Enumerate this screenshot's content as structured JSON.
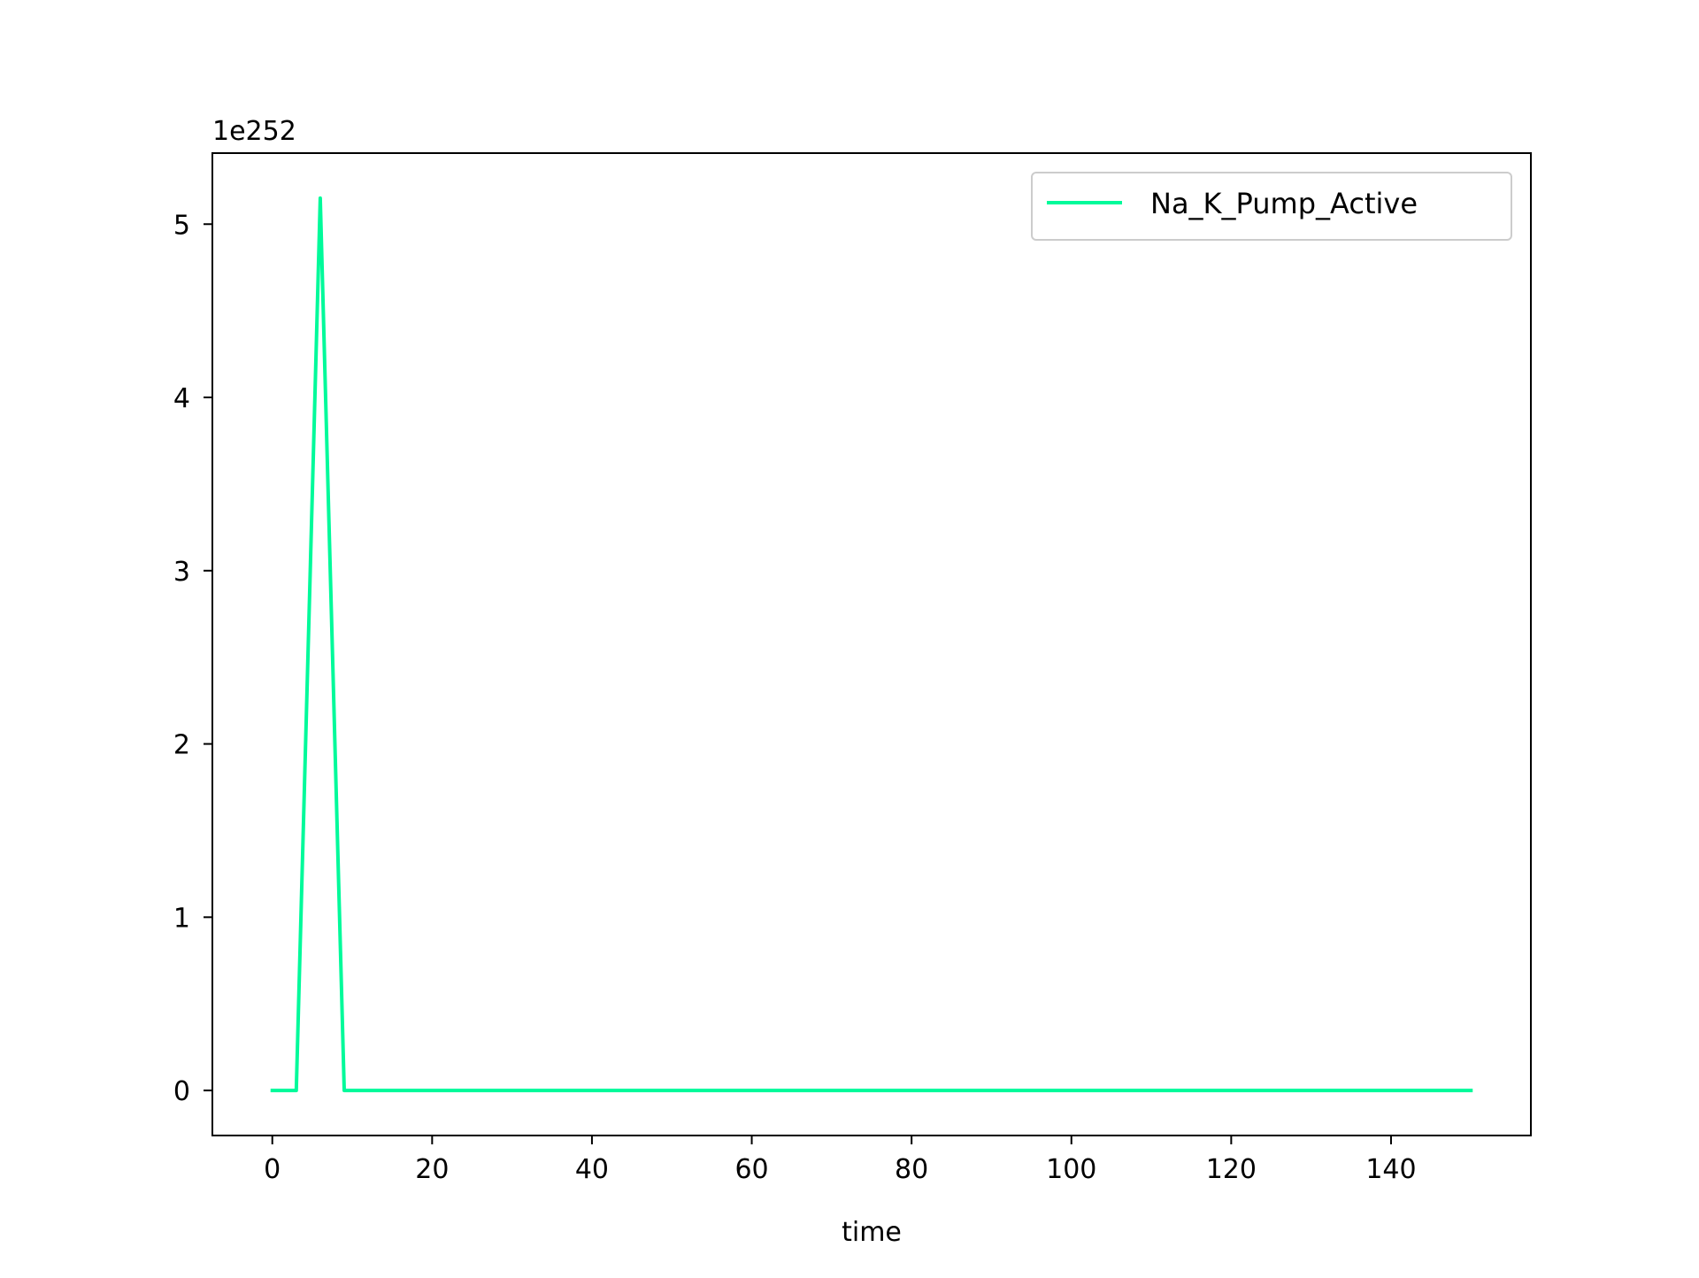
{
  "chart_data": {
    "type": "line",
    "title": "",
    "xlabel": "time",
    "ylabel": "",
    "y_scale_label": "1e252",
    "xlim": [
      -7.5,
      157.5
    ],
    "ylim": [
      -0.26,
      5.41
    ],
    "x_ticks": [
      0,
      20,
      40,
      60,
      80,
      100,
      120,
      140
    ],
    "x_tick_labels": [
      "0",
      "20",
      "40",
      "60",
      "80",
      "100",
      "120",
      "140"
    ],
    "y_ticks": [
      0,
      1,
      2,
      3,
      4,
      5
    ],
    "y_tick_labels": [
      "0",
      "1",
      "2",
      "3",
      "4",
      "5"
    ],
    "grid": false,
    "legend_position": "top-right",
    "series": [
      {
        "name": "Na_K_Pump_Active",
        "color": "#00fa9a",
        "x": [
          0,
          3,
          6,
          9,
          12,
          150
        ],
        "y": [
          0,
          0,
          5.15,
          0,
          0,
          0
        ]
      }
    ]
  }
}
